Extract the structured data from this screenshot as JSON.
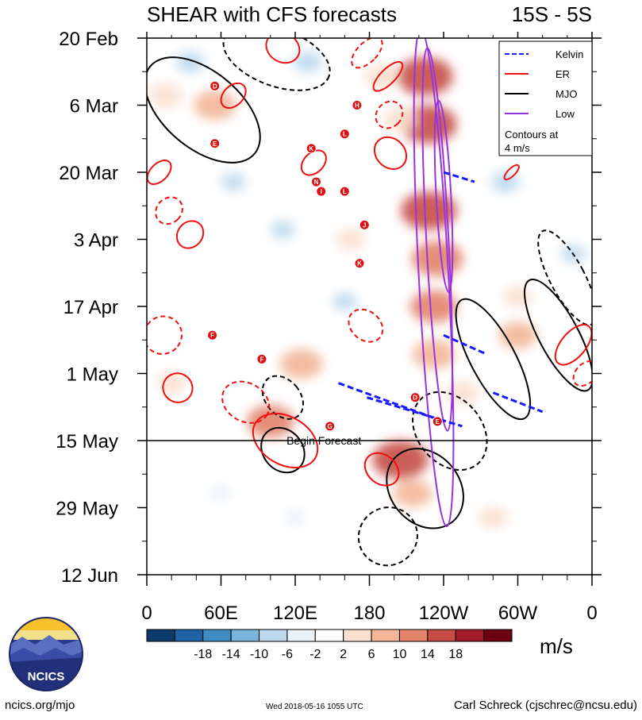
{
  "chart_data": {
    "type": "heatmap",
    "title": "SHEAR with CFS forecasts",
    "subtitle": "15S - 5S",
    "xlabel": "longitude",
    "ylabel": "date",
    "x_ticks": [
      "0",
      "60E",
      "120E",
      "180",
      "120W",
      "60W",
      "0"
    ],
    "x_tick_values": [
      0,
      60,
      120,
      180,
      240,
      300,
      360
    ],
    "xlim": [
      0,
      360
    ],
    "y_ticks": [
      "20 Feb",
      "6 Mar",
      "20 Mar",
      "3 Apr",
      "17 Apr",
      "1 May",
      "15 May",
      "29 May",
      "12 Jun"
    ],
    "y_tick_days": [
      0,
      14,
      28,
      42,
      56,
      70,
      84,
      98,
      112
    ],
    "ylim_days": [
      0,
      112
    ],
    "forecast_start_day": 84,
    "forecast_label": "Begin Forecast",
    "colorbar": {
      "unit": "m/s",
      "tick_labels": [
        "-18",
        "-14",
        "-10",
        "-6",
        "-2",
        "2",
        "6",
        "10",
        "14",
        "18"
      ],
      "colors": [
        "#0b3a6b",
        "#1f62a6",
        "#3f8cc4",
        "#7bb5dc",
        "#bcd9ee",
        "#e9f2f9",
        "#ffffff",
        "#fbe0cf",
        "#f3b697",
        "#e2836a",
        "#c74c45",
        "#a51a2a",
        "#6a0012"
      ]
    },
    "legend": {
      "position": "top-right",
      "entries": [
        {
          "name": "Kelvin",
          "color": "#1a1aff",
          "style": "dashed"
        },
        {
          "name": "ER",
          "color": "#ee1111",
          "style": "solid"
        },
        {
          "name": "MJO",
          "color": "#000000",
          "style": "solid"
        },
        {
          "name": "Low",
          "color": "#9933dd",
          "style": "solid"
        }
      ],
      "note_line1": "Contours at",
      "note_line2": "4 m/s"
    },
    "anomaly_blobs": [
      {
        "lon": 225,
        "day": 8,
        "value": 18
      },
      {
        "lon": 228,
        "day": 18,
        "value": 18
      },
      {
        "lon": 228,
        "day": 36,
        "value": 18
      },
      {
        "lon": 235,
        "day": 46,
        "value": 16
      },
      {
        "lon": 232,
        "day": 56,
        "value": 14
      },
      {
        "lon": 232,
        "day": 66,
        "value": 12
      },
      {
        "lon": 205,
        "day": 17,
        "value": 8
      },
      {
        "lon": 190,
        "day": 8,
        "value": 8
      },
      {
        "lon": 55,
        "day": 14,
        "value": 12
      },
      {
        "lon": 15,
        "day": 12,
        "value": 8
      },
      {
        "lon": 100,
        "day": 80,
        "value": 14
      },
      {
        "lon": 125,
        "day": 68,
        "value": 12
      },
      {
        "lon": 205,
        "day": 88,
        "value": 18
      },
      {
        "lon": 215,
        "day": 95,
        "value": 10
      },
      {
        "lon": 300,
        "day": 62,
        "value": 10
      },
      {
        "lon": 20,
        "day": 72,
        "value": 6
      },
      {
        "lon": 165,
        "day": 42,
        "value": 6
      },
      {
        "lon": 255,
        "day": 74,
        "value": 8
      },
      {
        "lon": 280,
        "day": 100,
        "value": 6
      },
      {
        "lon": 10,
        "day": 98,
        "value": 4
      },
      {
        "lon": 300,
        "day": 54,
        "value": 6
      },
      {
        "lon": 40,
        "day": 35,
        "value": 4
      },
      {
        "lon": 160,
        "day": 55,
        "value": -4
      },
      {
        "lon": 110,
        "day": 40,
        "value": -4
      },
      {
        "lon": 290,
        "day": 30,
        "value": -6
      },
      {
        "lon": 70,
        "day": 30,
        "value": -4
      },
      {
        "lon": 130,
        "day": 5,
        "value": -6
      },
      {
        "lon": 345,
        "day": 45,
        "value": -4
      },
      {
        "lon": 120,
        "day": 100,
        "value": -2
      },
      {
        "lon": 60,
        "day": 95,
        "value": -2
      },
      {
        "lon": 35,
        "day": 5,
        "value": -6
      }
    ],
    "contours": [
      {
        "wave": "MJO",
        "style": "solid",
        "lon": 45,
        "day": 15,
        "r_lon": 55,
        "r_day": 8,
        "angle": 40
      },
      {
        "wave": "MJO",
        "style": "dashed",
        "lon": 105,
        "day": 4,
        "r_lon": 45,
        "r_day": 6,
        "angle": 20
      },
      {
        "wave": "MJO",
        "style": "solid",
        "lon": 280,
        "day": 67,
        "r_lon": 18,
        "r_day": 14,
        "angle": -28
      },
      {
        "wave": "MJO",
        "style": "solid",
        "lon": 333,
        "day": 62,
        "r_lon": 16,
        "r_day": 13,
        "angle": -28
      },
      {
        "wave": "MJO",
        "style": "dashed",
        "lon": 340,
        "day": 50,
        "r_lon": 14,
        "r_day": 11,
        "angle": -28
      },
      {
        "wave": "MJO",
        "style": "dashed",
        "lon": 245,
        "day": 82,
        "r_lon": 26,
        "r_day": 9,
        "angle": -40
      },
      {
        "wave": "MJO",
        "style": "solid",
        "lon": 225,
        "day": 94,
        "r_lon": 28,
        "r_day": 9,
        "angle": -40
      },
      {
        "wave": "MJO",
        "style": "dashed",
        "lon": 195,
        "day": 104,
        "r_lon": 24,
        "r_day": 6,
        "angle": -35
      },
      {
        "wave": "MJO",
        "style": "solid",
        "lon": 110,
        "day": 86,
        "r_lon": 16,
        "r_day": 5,
        "angle": -40
      },
      {
        "wave": "MJO",
        "style": "dashed",
        "lon": 110,
        "day": 75,
        "r_lon": 14,
        "r_day": 5,
        "angle": -40
      },
      {
        "wave": "MJO",
        "style": "solid",
        "lon": 210,
        "day": 115,
        "r_lon": 26,
        "r_day": 3,
        "angle": 0
      },
      {
        "wave": "ER",
        "style": "solid",
        "lon": 112,
        "day": 84,
        "r_lon": 28,
        "r_day": 5,
        "angle": 30
      },
      {
        "wave": "ER",
        "style": "dashed",
        "lon": 80,
        "day": 76,
        "r_lon": 20,
        "r_day": 4,
        "angle": 30
      },
      {
        "wave": "ER",
        "style": "dashed",
        "lon": 13,
        "day": 62,
        "r_lon": 15,
        "r_day": 4,
        "angle": 45
      },
      {
        "wave": "ER",
        "style": "solid",
        "lon": 25,
        "day": 73,
        "r_lon": 12,
        "r_day": 3,
        "angle": 30
      },
      {
        "wave": "ER",
        "style": "solid",
        "lon": 35,
        "day": 41,
        "r_lon": 10,
        "r_day": 3,
        "angle": 40
      },
      {
        "wave": "ER",
        "style": "dashed",
        "lon": 18,
        "day": 36,
        "r_lon": 10,
        "r_day": 3,
        "angle": 45
      },
      {
        "wave": "ER",
        "style": "solid",
        "lon": 10,
        "day": 28,
        "r_lon": 7,
        "r_day": 3,
        "angle": 45
      },
      {
        "wave": "ER",
        "style": "solid",
        "lon": 70,
        "day": 12,
        "r_lon": 8,
        "r_day": 3,
        "angle": 45
      },
      {
        "wave": "ER",
        "style": "solid",
        "lon": 110,
        "day": 2,
        "r_lon": 14,
        "r_day": 3,
        "angle": 30
      },
      {
        "wave": "ER",
        "style": "dashed",
        "lon": 178,
        "day": 3,
        "r_lon": 8,
        "r_day": 4,
        "angle": 45
      },
      {
        "wave": "ER",
        "style": "solid",
        "lon": 195,
        "day": 8,
        "r_lon": 6,
        "r_day": 4,
        "angle": 45
      },
      {
        "wave": "ER",
        "style": "dashed",
        "lon": 196,
        "day": 16,
        "r_lon": 10,
        "r_day": 3,
        "angle": 45
      },
      {
        "wave": "ER",
        "style": "solid",
        "lon": 197,
        "day": 24,
        "r_lon": 14,
        "r_day": 3,
        "angle": 45
      },
      {
        "wave": "ER",
        "style": "solid",
        "lon": 135,
        "day": 26,
        "r_lon": 8,
        "r_day": 3,
        "angle": 45
      },
      {
        "wave": "ER",
        "style": "solid",
        "lon": 345,
        "day": 64,
        "r_lon": 10,
        "r_day": 5,
        "angle": 40
      },
      {
        "wave": "ER",
        "style": "dashed",
        "lon": 355,
        "day": 70,
        "r_lon": 8,
        "r_day": 3,
        "angle": 45
      },
      {
        "wave": "ER",
        "style": "solid",
        "lon": 190,
        "day": 90,
        "r_lon": 15,
        "r_day": 3,
        "angle": 40
      },
      {
        "wave": "ER",
        "style": "dashed",
        "lon": 177,
        "day": 60,
        "r_lon": 15,
        "r_day": 3,
        "angle": 40
      },
      {
        "wave": "ER",
        "style": "solid",
        "lon": 295,
        "day": 28,
        "r_lon": 3,
        "r_day": 2,
        "angle": 45
      },
      {
        "wave": "Low",
        "style": "solid",
        "lon": 232,
        "day": 50,
        "r_lon": 12,
        "r_day": 52,
        "angle": -3
      },
      {
        "wave": "Low",
        "style": "solid",
        "lon": 235,
        "day": 42,
        "r_lon": 9,
        "r_day": 40,
        "angle": -3
      },
      {
        "wave": "Low",
        "style": "solid",
        "lon": 240,
        "day": 33,
        "r_lon": 6,
        "r_day": 20,
        "angle": -3
      }
    ],
    "kelvin_lines": [
      {
        "lon1": 155,
        "day1": 72,
        "lon2": 240,
        "day2": 80
      },
      {
        "lon1": 178,
        "day1": 75,
        "lon2": 255,
        "day2": 81
      },
      {
        "lon1": 240,
        "day1": 62,
        "lon2": 275,
        "day2": 66
      },
      {
        "lon1": 280,
        "day1": 74,
        "lon2": 320,
        "day2": 78
      },
      {
        "lon1": 240,
        "day1": 28,
        "lon2": 265,
        "day2": 30
      }
    ],
    "storms": [
      {
        "label": "D",
        "lon": 55,
        "day": 10
      },
      {
        "label": "E",
        "lon": 55,
        "day": 22
      },
      {
        "label": "H",
        "lon": 170,
        "day": 14
      },
      {
        "label": "L",
        "lon": 160,
        "day": 20
      },
      {
        "label": "K",
        "lon": 133,
        "day": 23
      },
      {
        "label": "N",
        "lon": 137,
        "day": 30
      },
      {
        "label": "I",
        "lon": 141,
        "day": 32
      },
      {
        "label": "L",
        "lon": 160,
        "day": 32
      },
      {
        "label": "J",
        "lon": 176,
        "day": 39
      },
      {
        "label": "K",
        "lon": 172,
        "day": 47
      },
      {
        "label": "F",
        "lon": 53,
        "day": 62
      },
      {
        "label": "F",
        "lon": 93,
        "day": 67
      },
      {
        "label": "D",
        "lon": 217,
        "day": 75
      },
      {
        "label": "E",
        "lon": 235,
        "day": 80
      },
      {
        "label": "G",
        "lon": 148,
        "day": 81
      }
    ]
  },
  "footer": {
    "website": "ncics.org/mjo",
    "timestamp": "Wed 2018-05-16 1055 UTC",
    "author": "Carl Schreck (cjschrec@ncsu.edu)",
    "logo_text": "NCICS"
  }
}
